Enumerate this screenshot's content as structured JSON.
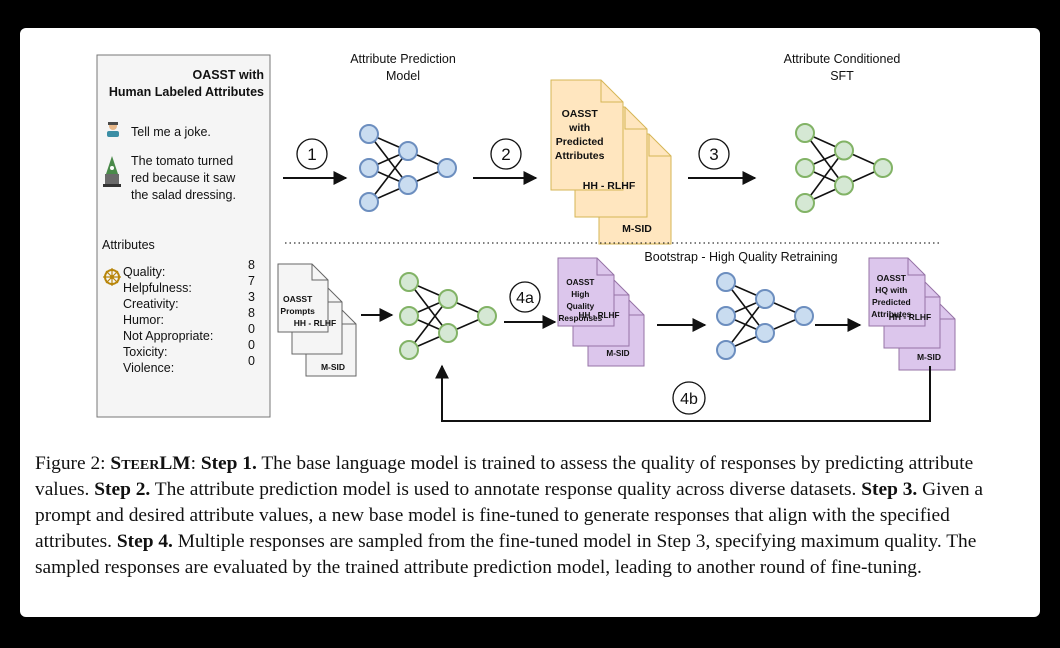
{
  "panel": {
    "title_line1": "OASST with",
    "title_line2": "Human Labeled Attributes",
    "user_message": "Tell me a joke.",
    "assistant_line1": "The tomato turned",
    "assistant_line2": "red because it saw",
    "assistant_line3": "the salad dressing.",
    "attributes_heading": "Attributes",
    "attributes": [
      {
        "name": "Quality:",
        "value": "8"
      },
      {
        "name": "Helpfulness:",
        "value": "7"
      },
      {
        "name": "Creativity:",
        "value": "3"
      },
      {
        "name": "Humor:",
        "value": "8"
      },
      {
        "name": "Not Appropriate:",
        "value": "0"
      },
      {
        "name": "Toxicity:",
        "value": "0"
      },
      {
        "name": "Violence:",
        "value": "0"
      }
    ]
  },
  "labels": {
    "attr_pred_line1": "Attribute Prediction",
    "attr_pred_line2": "Model",
    "attr_cond_line1": "Attribute Conditioned",
    "attr_cond_line2": "SFT",
    "bootstrap": "Bootstrap - High Quality Retraining"
  },
  "steps": {
    "s1": "1",
    "s2": "2",
    "s3": "3",
    "s4a": "4a",
    "s4b": "4b"
  },
  "docs": {
    "orange_top": [
      "OASST",
      "with",
      "Predicted",
      "Attributes"
    ],
    "orange_mid": "HH - RLHF",
    "orange_bot": "M-SID",
    "gray_top": [
      "OASST",
      "Prompts"
    ],
    "gray_mid": "HH - RLHF",
    "gray_bot": "M-SID",
    "purple1_top": [
      "OASST",
      "High",
      "Quality",
      "Responses"
    ],
    "purple1_mid": "HH - RLHF",
    "purple1_bot": "M-SID",
    "purple2_top": [
      "OASST",
      "HQ with",
      "Predicted",
      "Attributes"
    ],
    "purple2_mid": "HH - RLHF",
    "purple2_bot": "M-SID"
  },
  "caption": {
    "prefix": "Figure 2: ",
    "name": "SteerLM",
    "colon": ": ",
    "step1_label": "Step 1.",
    "step1_text": " The base language model is trained to assess the quality of responses by predicting attribute values. ",
    "step2_label": "Step 2.",
    "step2_text": " The attribute prediction model is used to annotate response quality across diverse datasets. ",
    "step3_label": "Step 3.",
    "step3_text": " Given a prompt and desired attribute values, a new base model is fine-tuned to generate responses that align with the specified attributes. ",
    "step4_label": "Step 4.",
    "step4_text": " Multiple responses are sampled from the fine-tuned model in Step 3, specifying maximum quality. The sampled responses are evaluated by the trained attribute prediction model, leading to another round of fine-tuning."
  },
  "colors": {
    "blue_node_fill": "#c9dcf0",
    "blue_node_stroke": "#6c8ebf",
    "green_node_fill": "#d5e8d4",
    "green_node_stroke": "#82b366",
    "orange_doc_fill": "#ffe6bf",
    "orange_doc_stroke": "#d6b656",
    "purple_doc_fill": "#dcc6ec",
    "purple_doc_stroke": "#9673a6",
    "gray_doc_fill": "#f5f5f5",
    "gray_doc_stroke": "#666666"
  }
}
